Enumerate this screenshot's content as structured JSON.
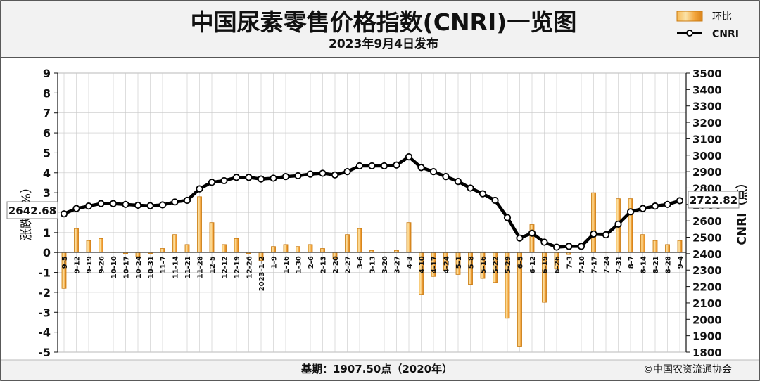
{
  "header": {
    "title": "中国尿素零售价格指数(CNRI)一览图",
    "subtitle": "2023年9月4日发布"
  },
  "footer": {
    "base": "基期：1907.50点（2020年）",
    "credit": "©中国农资流通协会"
  },
  "colors": {
    "bar_fill": "#f5a623",
    "bar_stroke": "#c97a10",
    "line": "#000000",
    "marker_fill": "#ffffff",
    "frame_bg": "#f2f2f2",
    "grid": "#c8c8c8"
  },
  "chart_data": {
    "type": "bar+line",
    "title": "中国尿素零售价格指数(CNRI)一览图",
    "subtitle": "2023年9月4日发布",
    "y_left_label": "涨跌（%）",
    "y_right_label": "CNRI（点）",
    "y_left_range": [
      -5,
      9
    ],
    "y_left_ticks": [
      "-5",
      "-4",
      "-3",
      "-2",
      "-1",
      "0",
      "1",
      "2",
      "3",
      "4",
      "5",
      "6",
      "7",
      "8",
      "9"
    ],
    "y_right_range": [
      1800,
      3500
    ],
    "y_right_ticks": [
      "1800",
      "1900",
      "2000",
      "2100",
      "2200",
      "2300",
      "2400",
      "2500",
      "2600",
      "2700",
      "2800",
      "2900",
      "3000",
      "3100",
      "3200",
      "3300",
      "3400",
      "3500"
    ],
    "grid": true,
    "legend": {
      "position": "top-right",
      "items": [
        {
          "name": "环比",
          "kind": "bar"
        },
        {
          "name": "CNRI",
          "kind": "line"
        }
      ]
    },
    "categories": [
      "9-5",
      "9-12",
      "9-19",
      "9-26",
      "10-10",
      "10-17",
      "10-24",
      "10-31",
      "11-7",
      "11-14",
      "11-21",
      "11-28",
      "12-5",
      "12-12",
      "12-19",
      "12-26",
      "2023-1-2",
      "1-9",
      "1-16",
      "1-30",
      "2-6",
      "2-13",
      "2-20",
      "2-27",
      "3-6",
      "3-13",
      "3-20",
      "3-27",
      "4-3",
      "4-10",
      "4-17",
      "4-24",
      "5-1",
      "5-8",
      "5-16",
      "5-22",
      "5-29",
      "6-5",
      "6-12",
      "6-19",
      "6-26",
      "7-3",
      "7-10",
      "7-17",
      "7-24",
      "7-31",
      "8-7",
      "8-14",
      "8-21",
      "8-28",
      "9-4"
    ],
    "series": [
      {
        "name": "环比",
        "type": "bar",
        "axis": "left",
        "values": [
          -1.8,
          1.2,
          0.6,
          0.7,
          0.0,
          -0.05,
          -0.2,
          -0.05,
          0.2,
          0.9,
          0.4,
          2.8,
          1.5,
          0.4,
          0.7,
          -0.05,
          -0.4,
          0.3,
          0.4,
          0.3,
          0.4,
          0.2,
          -0.3,
          0.9,
          1.2,
          0.1,
          0.0,
          0.1,
          1.5,
          -2.1,
          -1.2,
          -0.9,
          -1.1,
          -1.6,
          -1.3,
          -1.5,
          -3.3,
          -4.7,
          1.4,
          -2.5,
          -0.8,
          -0.1,
          0.0,
          3.0,
          0.0,
          2.7,
          2.7,
          0.9,
          0.6,
          0.4,
          0.6
        ]
      },
      {
        "name": "CNRI",
        "type": "line",
        "axis": "right",
        "values": [
          2642.68,
          2675,
          2690,
          2705,
          2705,
          2700,
          2695,
          2692,
          2697,
          2715,
          2725,
          2795,
          2835,
          2845,
          2865,
          2865,
          2855,
          2860,
          2870,
          2875,
          2885,
          2890,
          2880,
          2900,
          2935,
          2935,
          2935,
          2940,
          2990,
          2925,
          2900,
          2870,
          2840,
          2800,
          2765,
          2725,
          2620,
          2495,
          2525,
          2470,
          2440,
          2445,
          2445,
          2520,
          2515,
          2580,
          2655,
          2675,
          2690,
          2700,
          2722.82
        ]
      }
    ],
    "annotations": {
      "first_value": "2642.68",
      "last_value": "2722.82"
    }
  }
}
